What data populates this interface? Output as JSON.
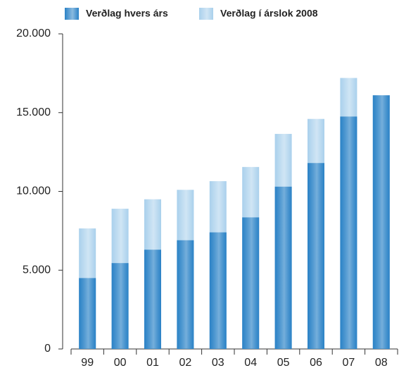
{
  "chart_data": {
    "type": "bar",
    "barmode": "overlay",
    "categories": [
      "99",
      "00",
      "01",
      "02",
      "03",
      "04",
      "05",
      "06",
      "07",
      "08"
    ],
    "series": [
      {
        "name": "Verðlag í árslok 2008",
        "color": "#a9d0ec",
        "values": [
          7650,
          8900,
          9500,
          10100,
          10650,
          11550,
          13650,
          14600,
          17200,
          16100
        ]
      },
      {
        "name": "Verðlag hvers árs",
        "color": "#2b82c6",
        "values": [
          4500,
          5450,
          6300,
          6900,
          7400,
          8350,
          10300,
          11800,
          14750,
          16100
        ]
      }
    ],
    "ylim": [
      0,
      20000
    ],
    "yticks": [
      0,
      {
        "value": 5000,
        "label": "5.000"
      },
      {
        "value": 10000,
        "label": "10.000"
      },
      {
        "value": 15000,
        "label": "15.000"
      },
      {
        "value": 20000,
        "label": "20.000"
      }
    ],
    "grid": false,
    "legend": "top"
  }
}
